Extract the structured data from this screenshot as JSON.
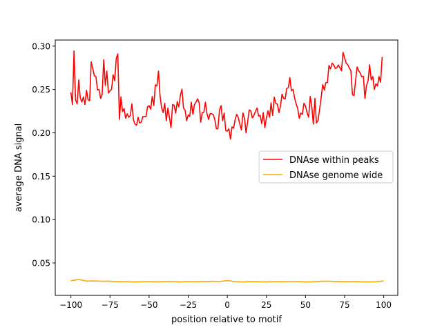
{
  "chart_data": {
    "type": "line",
    "title": "",
    "xlabel": "position relative to motif",
    "ylabel": "average DNA signal",
    "xlim": [
      -110,
      109
    ],
    "ylim": [
      0.0126,
      0.307
    ],
    "xticks": [
      -100,
      -75,
      -50,
      -25,
      0,
      25,
      50,
      75,
      100
    ],
    "xtick_labels": [
      "−100",
      "−75",
      "−50",
      "−25",
      "0",
      "25",
      "50",
      "75",
      "100"
    ],
    "yticks": [
      0.05,
      0.1,
      0.15,
      0.2,
      0.25,
      0.3
    ],
    "ytick_labels": [
      "0.05",
      "0.10",
      "0.15",
      "0.20",
      "0.25",
      "0.30"
    ],
    "grid": false,
    "legend_position": "center-right",
    "series": [
      {
        "name": "DNAse within peaks",
        "color": "#ff0000",
        "x_start": -100,
        "x_step": 1,
        "values": [
          0.2467,
          0.2326,
          0.2944,
          0.238,
          0.2334,
          0.261,
          0.2406,
          0.2355,
          0.2414,
          0.2326,
          0.249,
          0.238,
          0.237,
          0.2817,
          0.274,
          0.2658,
          0.265,
          0.2493,
          0.25,
          0.2397,
          0.244,
          0.2843,
          0.2546,
          0.271,
          0.2459,
          0.2485,
          0.25,
          0.267,
          0.26,
          0.2857,
          0.291,
          0.2154,
          0.2414,
          0.2246,
          0.228,
          0.2167,
          0.222,
          0.218,
          0.22,
          0.2334,
          0.215,
          0.21,
          0.2087,
          0.218,
          0.2114,
          0.2122,
          0.2186,
          0.2186,
          0.2186,
          0.23,
          0.2313,
          0.2273,
          0.2419,
          0.2313,
          0.2552,
          0.254,
          0.271,
          0.2432,
          0.2286,
          0.2233,
          0.234,
          0.214,
          0.2286,
          0.218,
          0.206,
          0.2326,
          0.2318,
          0.2228,
          0.236,
          0.23,
          0.2432,
          0.2504,
          0.2286,
          0.226,
          0.214,
          0.2206,
          0.219,
          0.2353,
          0.2212,
          0.2326,
          0.2353,
          0.2392,
          0.2345,
          0.2122,
          0.2233,
          0.2238,
          0.2353,
          0.222,
          0.2154,
          0.222,
          0.222,
          0.221,
          0.2154,
          0.2047,
          0.2047,
          0.226,
          0.2313,
          0.214,
          0.2228,
          0.2026,
          0.202,
          0.2047,
          0.1928,
          0.2068,
          0.2053,
          0.2154,
          0.2212,
          0.218,
          0.21,
          0.2034,
          0.2228,
          0.2167,
          0.2,
          0.2127,
          0.2265,
          0.2254,
          0.2172,
          0.22,
          0.2246,
          0.2286,
          0.2193,
          0.22,
          0.2106,
          0.2233,
          0.206,
          0.2174,
          0.2254,
          0.218,
          0.2345,
          0.22,
          0.2411,
          0.234,
          0.233,
          0.2233,
          0.2307,
          0.2446,
          0.2397,
          0.239,
          0.2512,
          0.252,
          0.2636,
          0.2485,
          0.25,
          0.2406,
          0.2334,
          0.228,
          0.2167,
          0.2228,
          0.2212,
          0.234,
          0.2307,
          0.2233,
          0.218,
          0.2419,
          0.2307,
          0.21,
          0.2397,
          0.2114,
          0.214,
          0.2273,
          0.2406,
          0.2557,
          0.2493,
          0.2578,
          0.258,
          0.2777,
          0.2737,
          0.2803,
          0.2785,
          0.2743,
          0.275,
          0.2783,
          0.275,
          0.2716,
          0.2928,
          0.2865,
          0.2803,
          0.2785,
          0.275,
          0.2716,
          0.244,
          0.243,
          0.26,
          0.2759,
          0.2716,
          0.269,
          0.2644,
          0.265,
          0.2397,
          0.2546,
          0.26,
          0.2785,
          0.261,
          0.265,
          0.25,
          0.2565,
          0.254,
          0.265,
          0.2584,
          0.2875
        ]
      },
      {
        "name": "DNAse genome wide",
        "color": "#ffa500",
        "x_start": -100,
        "x_step": 5,
        "values": [
          0.0295,
          0.031,
          0.029,
          0.0292,
          0.0288,
          0.029,
          0.0283,
          0.0285,
          0.028,
          0.0283,
          0.0285,
          0.0282,
          0.0286,
          0.0285,
          0.028,
          0.0285,
          0.0283,
          0.0286,
          0.0288,
          0.0285,
          0.0296,
          0.0285,
          0.028,
          0.0284,
          0.0283,
          0.0282,
          0.0285,
          0.0283,
          0.0285,
          0.0285,
          0.028,
          0.0283,
          0.0288,
          0.0289,
          0.0286,
          0.0283,
          0.0286,
          0.0283,
          0.0282,
          0.0283,
          0.0292
        ]
      }
    ]
  }
}
